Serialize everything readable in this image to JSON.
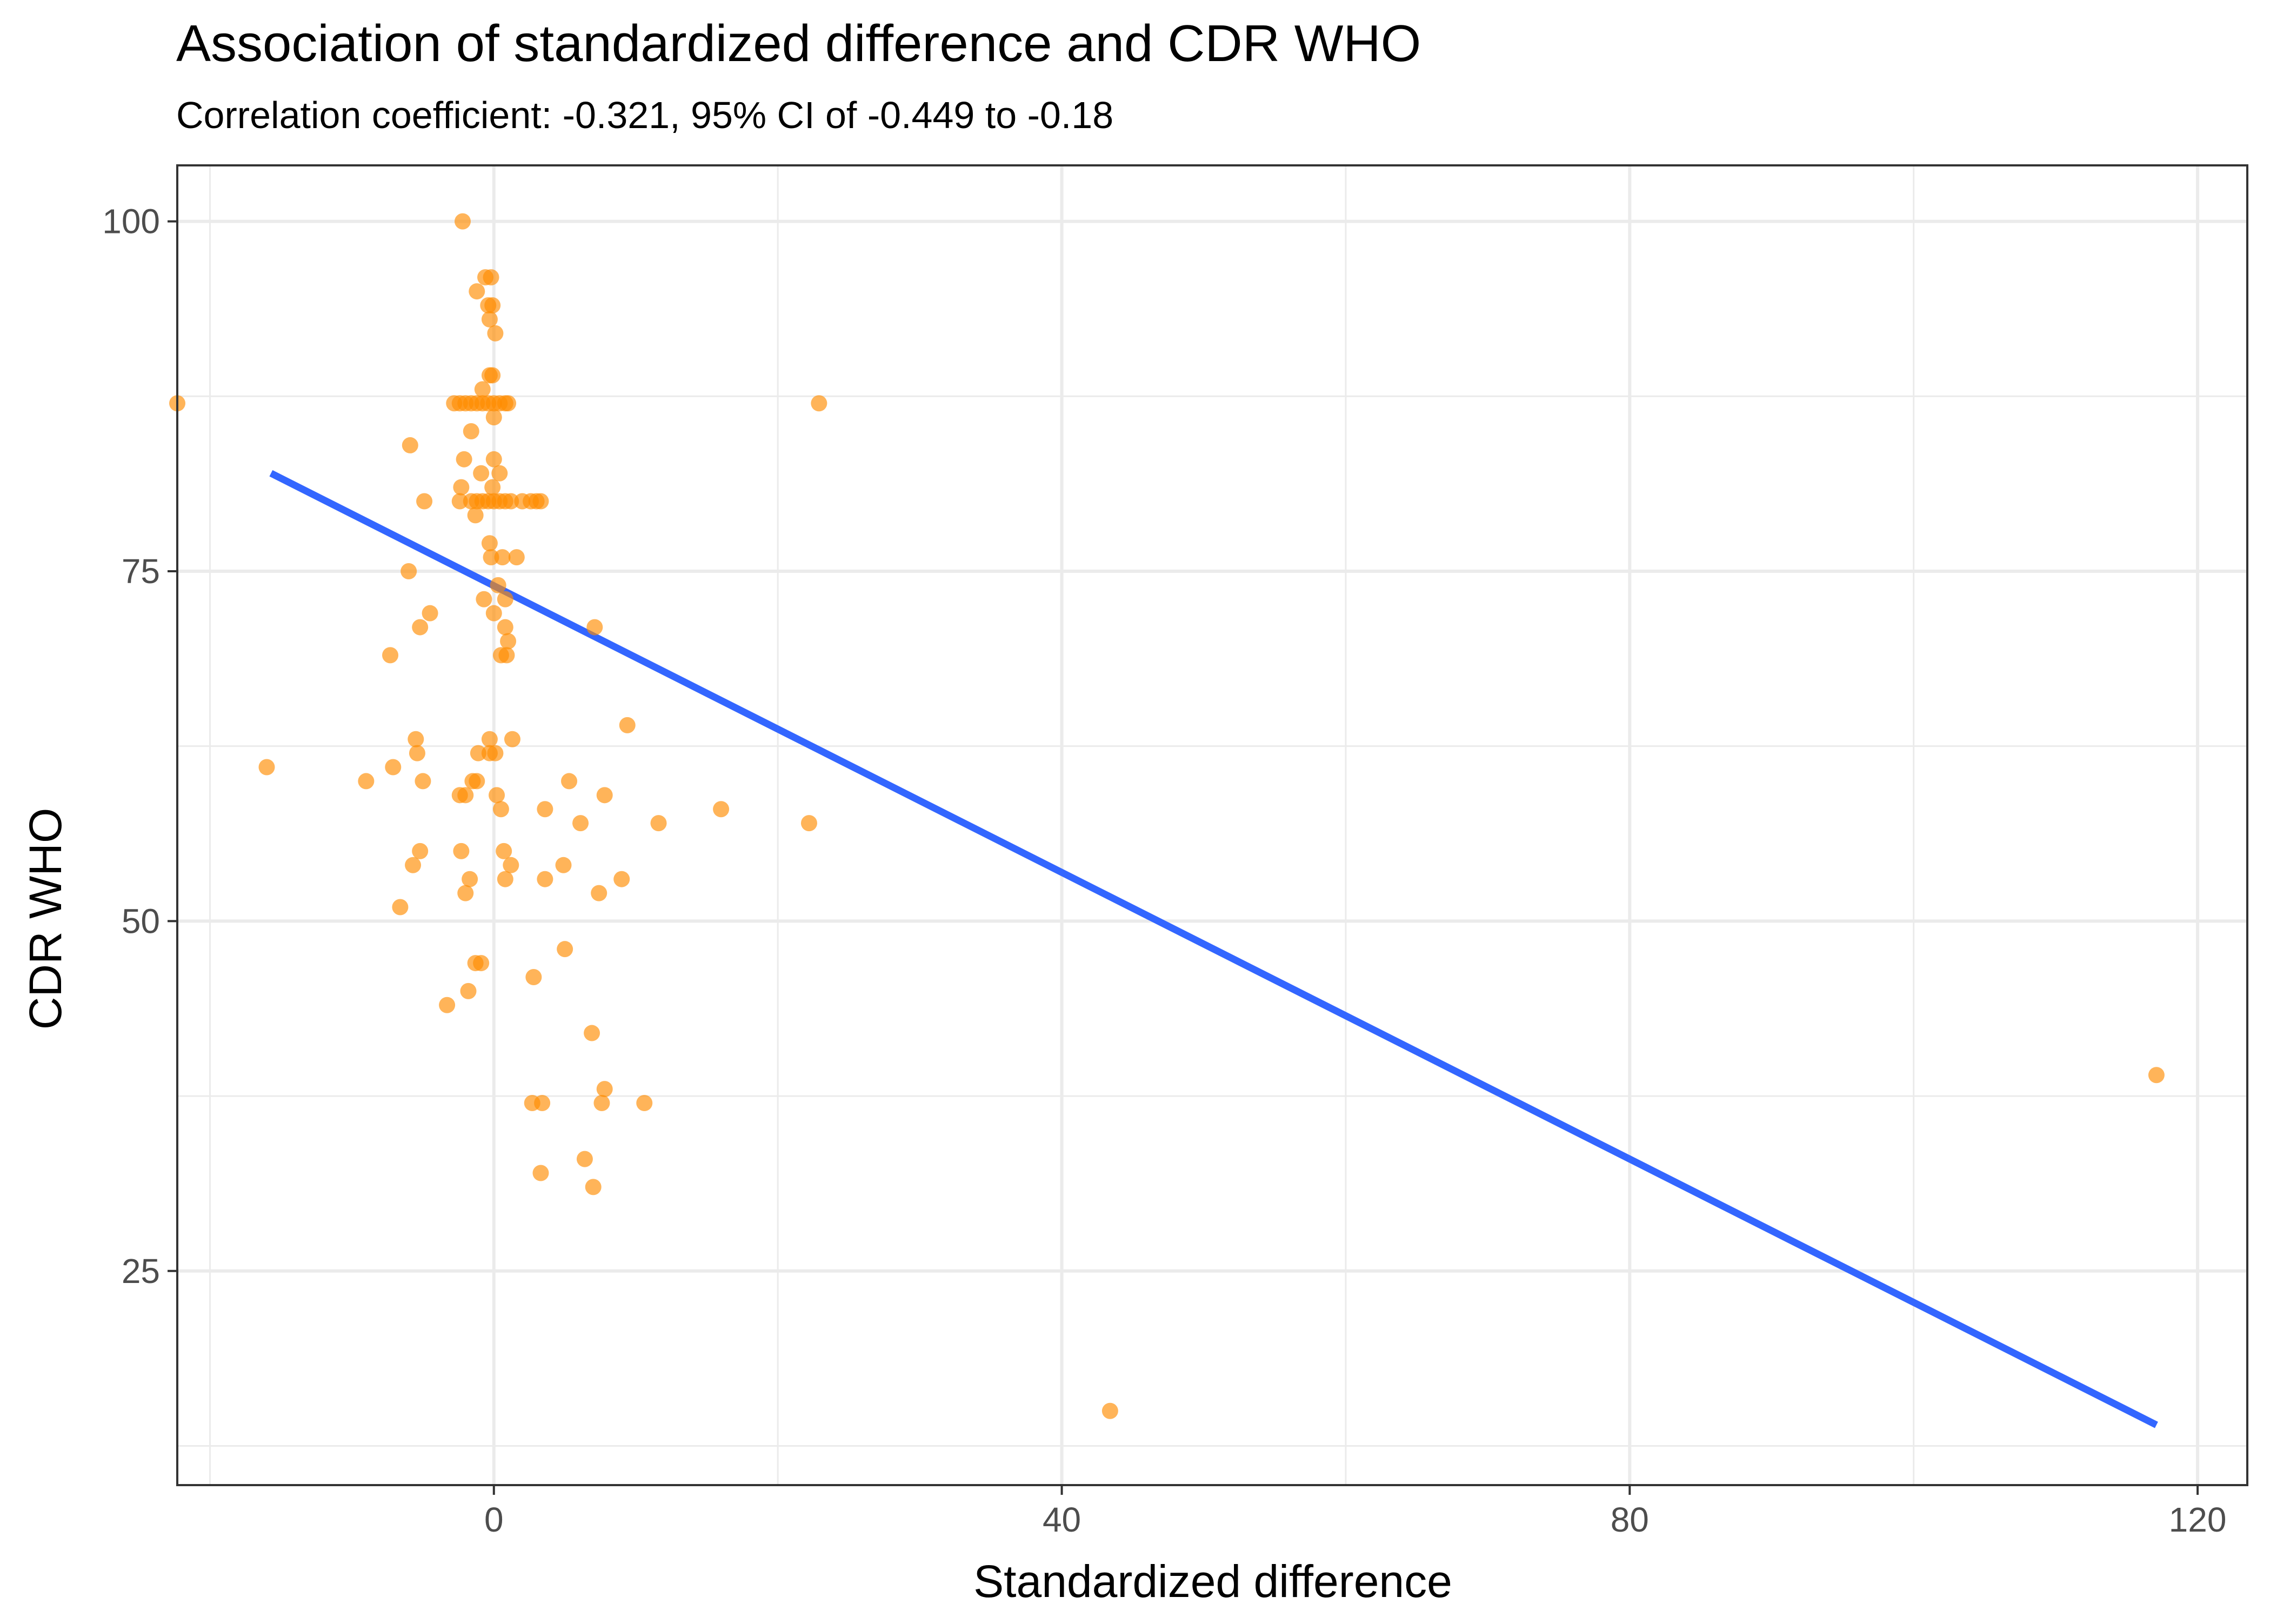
{
  "chart_data": {
    "type": "scatter",
    "title": "Association of standardized difference and CDR WHO",
    "subtitle": "Correlation coefficient: -0.321, 95% CI of -0.449 to -0.18",
    "xlabel": "Standardized difference",
    "ylabel": "CDR WHO",
    "xlim": [
      -22.3,
      123.5
    ],
    "ylim": [
      9.7,
      104.0
    ],
    "x_ticks": [
      0,
      40,
      80,
      120
    ],
    "x_tick_labels": [
      "0",
      "40",
      "80",
      "120"
    ],
    "y_ticks": [
      25,
      50,
      75,
      100
    ],
    "y_tick_labels": [
      "25",
      "50",
      "75",
      "100"
    ],
    "grid": true,
    "point_color": "#FF8C00",
    "line_color": "#3366FF",
    "trend_line": {
      "x": [
        -15.7,
        117.1
      ],
      "y": [
        82,
        14
      ]
    },
    "points": [
      {
        "x": -2.2,
        "y": 100
      },
      {
        "x": -0.6,
        "y": 96
      },
      {
        "x": -0.2,
        "y": 96
      },
      {
        "x": -1.2,
        "y": 95
      },
      {
        "x": -0.4,
        "y": 94
      },
      {
        "x": -0.1,
        "y": 94
      },
      {
        "x": -0.3,
        "y": 93
      },
      {
        "x": 0.1,
        "y": 92
      },
      {
        "x": -0.3,
        "y": 89
      },
      {
        "x": -0.1,
        "y": 89
      },
      {
        "x": -0.8,
        "y": 88
      },
      {
        "x": -2.8,
        "y": 87
      },
      {
        "x": -2.4,
        "y": 87
      },
      {
        "x": -2.0,
        "y": 87
      },
      {
        "x": -1.6,
        "y": 87
      },
      {
        "x": -1.2,
        "y": 87
      },
      {
        "x": -0.8,
        "y": 87
      },
      {
        "x": -0.4,
        "y": 87
      },
      {
        "x": 0.0,
        "y": 87
      },
      {
        "x": 0.4,
        "y": 87
      },
      {
        "x": 0.8,
        "y": 87
      },
      {
        "x": 1.0,
        "y": 87
      },
      {
        "x": -22.3,
        "y": 87
      },
      {
        "x": 22.9,
        "y": 87
      },
      {
        "x": 0.0,
        "y": 86
      },
      {
        "x": -1.6,
        "y": 85
      },
      {
        "x": -5.9,
        "y": 84
      },
      {
        "x": -2.1,
        "y": 83
      },
      {
        "x": 0.0,
        "y": 83
      },
      {
        "x": 0.4,
        "y": 82
      },
      {
        "x": -0.9,
        "y": 82
      },
      {
        "x": -2.3,
        "y": 81
      },
      {
        "x": -0.1,
        "y": 81
      },
      {
        "x": -4.9,
        "y": 80
      },
      {
        "x": -2.4,
        "y": 80
      },
      {
        "x": -1.6,
        "y": 80
      },
      {
        "x": -1.2,
        "y": 80
      },
      {
        "x": -0.8,
        "y": 80
      },
      {
        "x": -0.4,
        "y": 80
      },
      {
        "x": 0.0,
        "y": 80
      },
      {
        "x": 0.4,
        "y": 80
      },
      {
        "x": 0.8,
        "y": 80
      },
      {
        "x": 1.2,
        "y": 80
      },
      {
        "x": 2.0,
        "y": 80
      },
      {
        "x": 2.6,
        "y": 80
      },
      {
        "x": 3.0,
        "y": 80
      },
      {
        "x": 3.3,
        "y": 80
      },
      {
        "x": -1.3,
        "y": 79
      },
      {
        "x": -0.3,
        "y": 77
      },
      {
        "x": -0.2,
        "y": 76
      },
      {
        "x": 0.6,
        "y": 76
      },
      {
        "x": 1.6,
        "y": 76
      },
      {
        "x": -6.0,
        "y": 75
      },
      {
        "x": 0.3,
        "y": 74
      },
      {
        "x": -0.7,
        "y": 73
      },
      {
        "x": 0.8,
        "y": 73
      },
      {
        "x": -4.5,
        "y": 72
      },
      {
        "x": 0.0,
        "y": 72
      },
      {
        "x": -5.2,
        "y": 71
      },
      {
        "x": 0.8,
        "y": 71
      },
      {
        "x": 7.1,
        "y": 71
      },
      {
        "x": 1.0,
        "y": 70
      },
      {
        "x": -7.3,
        "y": 69
      },
      {
        "x": 0.5,
        "y": 69
      },
      {
        "x": 0.9,
        "y": 69
      },
      {
        "x": 9.4,
        "y": 64
      },
      {
        "x": -5.5,
        "y": 63
      },
      {
        "x": -0.3,
        "y": 63
      },
      {
        "x": 1.3,
        "y": 63
      },
      {
        "x": -5.4,
        "y": 62
      },
      {
        "x": -1.1,
        "y": 62
      },
      {
        "x": -0.3,
        "y": 62
      },
      {
        "x": 0.1,
        "y": 62
      },
      {
        "x": -16.0,
        "y": 61
      },
      {
        "x": -7.1,
        "y": 61
      },
      {
        "x": -9.0,
        "y": 60
      },
      {
        "x": -5.0,
        "y": 60
      },
      {
        "x": -1.5,
        "y": 60
      },
      {
        "x": -1.2,
        "y": 60
      },
      {
        "x": 5.3,
        "y": 60
      },
      {
        "x": -2.4,
        "y": 59
      },
      {
        "x": -2.0,
        "y": 59
      },
      {
        "x": 0.2,
        "y": 59
      },
      {
        "x": 7.8,
        "y": 59
      },
      {
        "x": 0.5,
        "y": 58
      },
      {
        "x": 3.6,
        "y": 58
      },
      {
        "x": 16.0,
        "y": 58
      },
      {
        "x": 6.1,
        "y": 57
      },
      {
        "x": 11.6,
        "y": 57
      },
      {
        "x": 22.2,
        "y": 57
      },
      {
        "x": -5.2,
        "y": 55
      },
      {
        "x": -2.3,
        "y": 55
      },
      {
        "x": 0.7,
        "y": 55
      },
      {
        "x": -5.7,
        "y": 54
      },
      {
        "x": 1.2,
        "y": 54
      },
      {
        "x": 4.9,
        "y": 54
      },
      {
        "x": -1.7,
        "y": 53
      },
      {
        "x": 0.8,
        "y": 53
      },
      {
        "x": 3.6,
        "y": 53
      },
      {
        "x": 9.0,
        "y": 53
      },
      {
        "x": -2.0,
        "y": 52
      },
      {
        "x": 7.4,
        "y": 52
      },
      {
        "x": -6.6,
        "y": 51
      },
      {
        "x": 5.0,
        "y": 48
      },
      {
        "x": -1.3,
        "y": 47
      },
      {
        "x": -0.9,
        "y": 47
      },
      {
        "x": 2.8,
        "y": 46
      },
      {
        "x": -1.8,
        "y": 45
      },
      {
        "x": -3.3,
        "y": 44
      },
      {
        "x": 6.9,
        "y": 42
      },
      {
        "x": 117.1,
        "y": 39
      },
      {
        "x": 7.8,
        "y": 38
      },
      {
        "x": 2.7,
        "y": 37
      },
      {
        "x": 3.4,
        "y": 37
      },
      {
        "x": 7.6,
        "y": 37
      },
      {
        "x": 10.6,
        "y": 37
      },
      {
        "x": 6.4,
        "y": 33
      },
      {
        "x": 3.3,
        "y": 32
      },
      {
        "x": 7.0,
        "y": 31
      },
      {
        "x": 43.4,
        "y": 15
      }
    ]
  }
}
